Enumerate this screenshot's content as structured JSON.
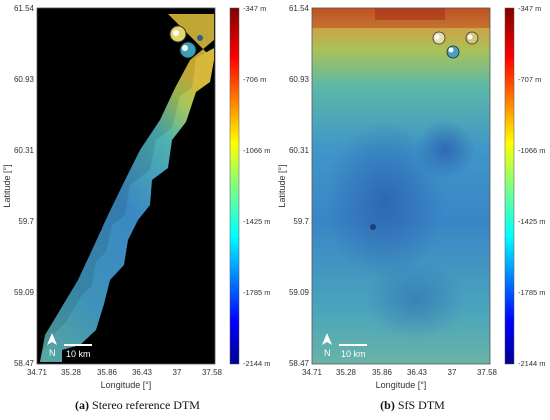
{
  "colors": {
    "background": "#ffffff",
    "map_background_a": "#000000",
    "accent_blue": "#2f6fb5",
    "colormap": [
      "#00008f",
      "#0000ff",
      "#0080ff",
      "#00ffff",
      "#80ff80",
      "#ffff00",
      "#ff8000",
      "#ff0000",
      "#800000"
    ]
  },
  "panels": [
    {
      "id": "a",
      "caption_tag": "(a)",
      "caption_text": "Stereo reference DTM",
      "xlabel": "Longitude [°]",
      "ylabel": "Latitude [°]",
      "x_ticks": [
        "34.71",
        "35.28",
        "35.86",
        "36.43",
        "37",
        "37.58"
      ],
      "y_ticks": [
        "61.54",
        "60.93",
        "60.31",
        "59.7",
        "59.09",
        "58.47"
      ],
      "colorbar_labels": [
        "-347 m",
        "-706 m",
        "-1066 m",
        "-1425 m",
        "-1785 m",
        "-2144 m"
      ],
      "north_label": "N",
      "scale_label": "10 km"
    },
    {
      "id": "b",
      "caption_tag": "(b)",
      "caption_text": "SfS DTM",
      "xlabel": "Longitude [°]",
      "ylabel": "Latitude [°]",
      "x_ticks": [
        "34.71",
        "35.28",
        "35.86",
        "36.43",
        "37",
        "37.58"
      ],
      "y_ticks": [
        "61.54",
        "60.93",
        "60.31",
        "59.7",
        "59.09",
        "58.47"
      ],
      "colorbar_labels": [
        "-347 m",
        "-707 m",
        "-1066 m",
        "-1425 m",
        "-1785 m",
        "-2144 m"
      ],
      "north_label": "N",
      "scale_label": "10 km"
    }
  ]
}
